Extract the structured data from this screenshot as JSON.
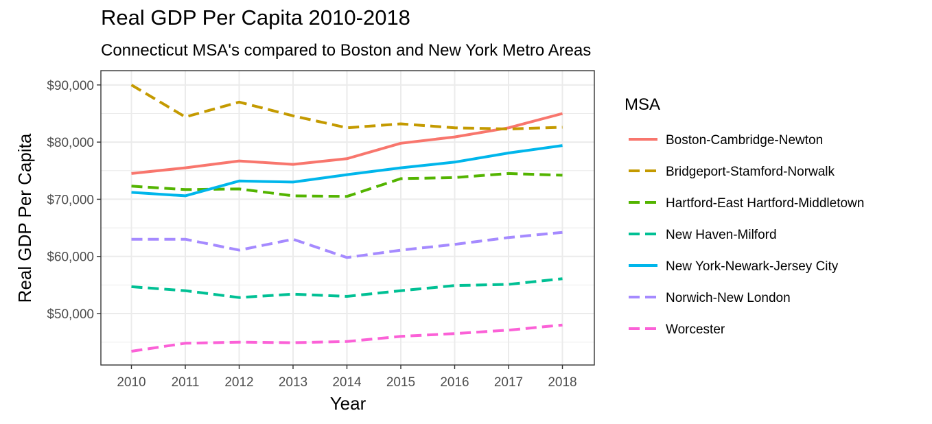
{
  "chart_data": {
    "type": "line",
    "title": "Real GDP Per Capita 2010-2018",
    "subtitle": "Connecticut MSA's compared to Boston and New York Metro Areas",
    "xlabel": "Year",
    "ylabel": "Real GDP Per Capita",
    "x": [
      2010,
      2011,
      2012,
      2013,
      2014,
      2015,
      2016,
      2017,
      2018
    ],
    "ylim": [
      41000,
      92500
    ],
    "y_ticks": [
      50000,
      60000,
      70000,
      80000,
      90000
    ],
    "y_tick_labels": [
      "$50,000",
      "$60,000",
      "$70,000",
      "$80,000",
      "$90,000"
    ],
    "grid": true,
    "legend_title": "MSA",
    "legend_position": "right",
    "series": [
      {
        "name": "Boston-Cambridge-Newton",
        "color": "#F8766D",
        "dash": "solid",
        "values": [
          74500,
          75500,
          76700,
          76100,
          77100,
          79800,
          80900,
          82500,
          85000
        ]
      },
      {
        "name": "Bridgeport-Stamford-Norwalk",
        "color": "#C49A00",
        "dash": "dashed",
        "values": [
          90000,
          84400,
          87000,
          84600,
          82500,
          83200,
          82500,
          82300,
          82600
        ]
      },
      {
        "name": "Hartford-East Hartford-Middletown",
        "color": "#53B400",
        "dash": "dashed",
        "values": [
          72300,
          71700,
          71800,
          70600,
          70500,
          73600,
          73800,
          74500,
          74200
        ]
      },
      {
        "name": "New Haven-Milford",
        "color": "#00C094",
        "dash": "dashed",
        "values": [
          54700,
          54000,
          52800,
          53400,
          53000,
          54000,
          54900,
          55100,
          56100
        ]
      },
      {
        "name": "New York-Newark-Jersey City",
        "color": "#00B6EB",
        "dash": "solid",
        "values": [
          71200,
          70600,
          73200,
          73000,
          74300,
          75500,
          76500,
          78100,
          79400
        ]
      },
      {
        "name": "Norwich-New London",
        "color": "#A58AFF",
        "dash": "dashed",
        "values": [
          63000,
          63000,
          61100,
          63000,
          59800,
          61100,
          62100,
          63300,
          64200
        ]
      },
      {
        "name": "Worcester",
        "color": "#FB61D7",
        "dash": "dashed",
        "values": [
          43400,
          44800,
          45000,
          44900,
          45100,
          46000,
          46500,
          47100,
          48000
        ]
      }
    ]
  }
}
